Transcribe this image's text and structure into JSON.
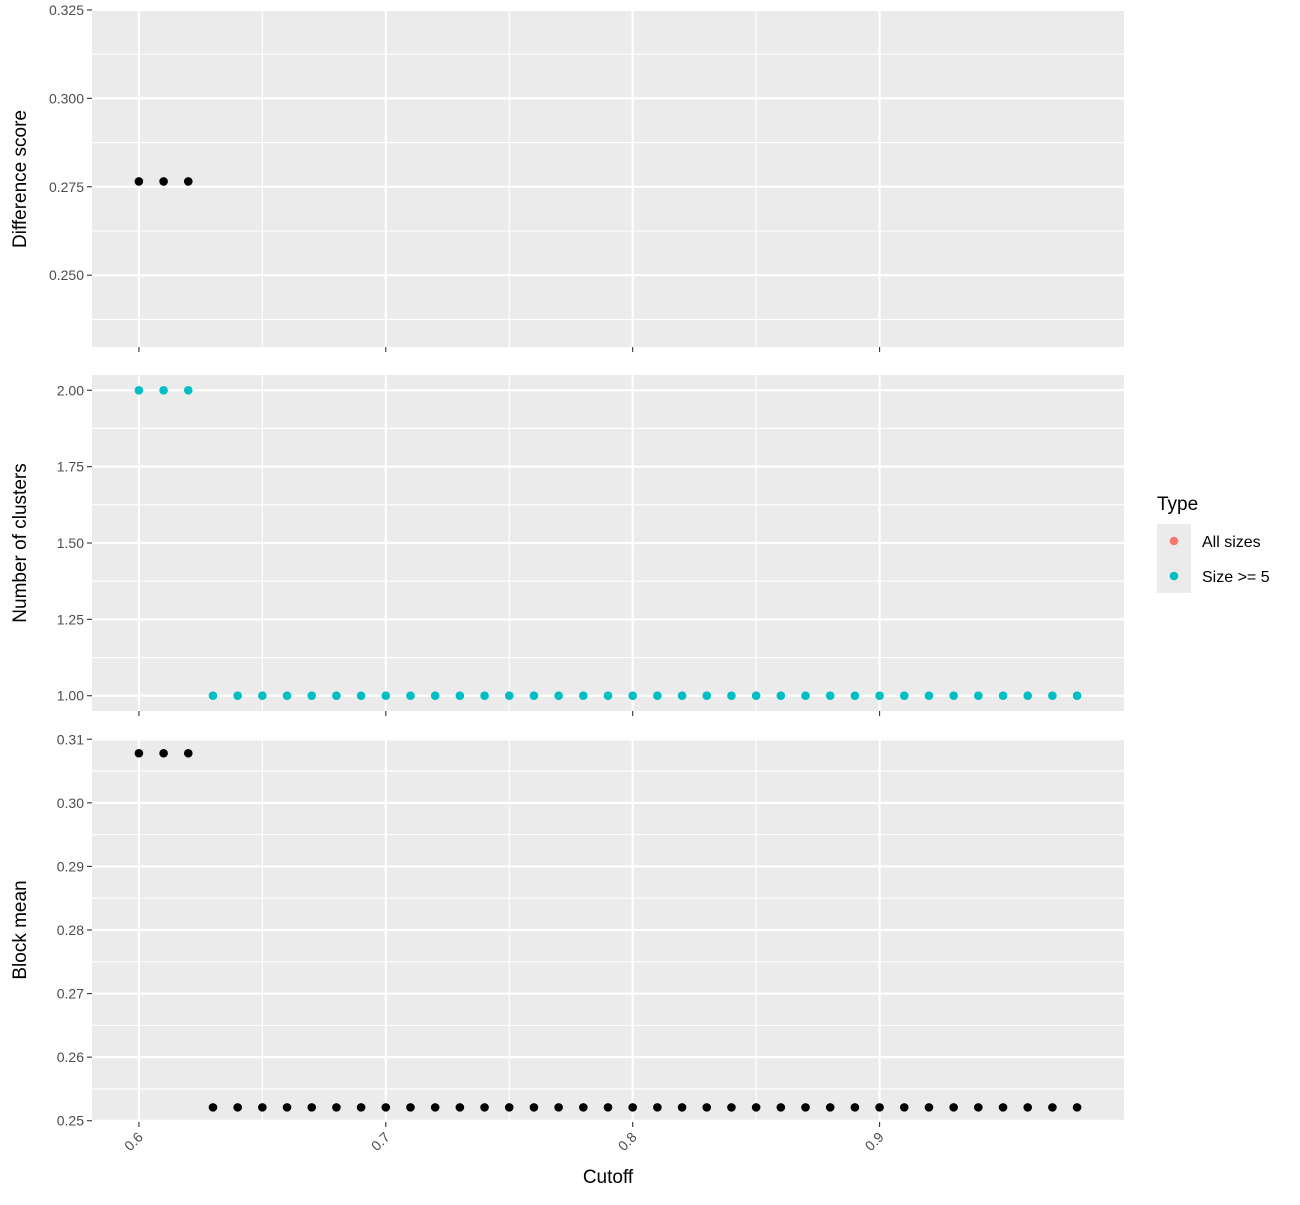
{
  "chart_data": {
    "type": "scatter",
    "xlabel": "Cutoff",
    "x_ticks": [
      "0.6",
      "0.7",
      "0.8",
      "0.9"
    ],
    "xlim": [
      0.581,
      0.999
    ],
    "legend": {
      "title": "Type",
      "position": "right",
      "entries": [
        {
          "label": "All sizes",
          "color": "#F8766D"
        },
        {
          "label": "Size >= 5",
          "color": "#00BFC4"
        }
      ]
    },
    "grid": true,
    "panels": [
      {
        "ylabel": "Difference score",
        "ylim": [
          0.2297,
          0.3247
        ],
        "y_ticks": [
          "0.250",
          "0.275",
          "0.300",
          "0.325"
        ],
        "y_tick_values": [
          0.25,
          0.275,
          0.3,
          0.325
        ],
        "series": [
          {
            "color": "#000000",
            "x": [
              0.6,
              0.61,
              0.62
            ],
            "y": [
              0.2765,
              0.2765,
              0.2765
            ]
          }
        ]
      },
      {
        "ylabel": "Number of clusters",
        "ylim": [
          0.95,
          2.05
        ],
        "y_ticks": [
          "1.00",
          "1.25",
          "1.50",
          "1.75",
          "2.00"
        ],
        "y_tick_values": [
          1.0,
          1.25,
          1.5,
          1.75,
          2.0
        ],
        "series": [
          {
            "name": "Size >= 5",
            "color": "#00BFC4",
            "x": [
              0.6,
              0.61,
              0.62,
              0.63,
              0.64,
              0.65,
              0.66,
              0.67,
              0.68,
              0.69,
              0.7,
              0.71,
              0.72,
              0.73,
              0.74,
              0.75,
              0.76,
              0.77,
              0.78,
              0.79,
              0.8,
              0.81,
              0.82,
              0.83,
              0.84,
              0.85,
              0.86,
              0.87,
              0.88,
              0.89,
              0.9,
              0.91,
              0.92,
              0.93,
              0.94,
              0.95,
              0.96,
              0.97,
              0.98
            ],
            "y": [
              2,
              2,
              2,
              1,
              1,
              1,
              1,
              1,
              1,
              1,
              1,
              1,
              1,
              1,
              1,
              1,
              1,
              1,
              1,
              1,
              1,
              1,
              1,
              1,
              1,
              1,
              1,
              1,
              1,
              1,
              1,
              1,
              1,
              1,
              1,
              1,
              1,
              1,
              1
            ]
          }
        ]
      },
      {
        "ylabel": "Block mean",
        "ylim": [
          0.2498,
          0.3102
        ],
        "y_ticks": [
          "0.25",
          "0.26",
          "0.27",
          "0.28",
          "0.29",
          "0.30",
          "0.31"
        ],
        "y_tick_values": [
          0.25,
          0.26,
          0.27,
          0.28,
          0.29,
          0.3,
          0.31
        ],
        "series": [
          {
            "color": "#000000",
            "x": [
              0.6,
              0.61,
              0.62,
              0.63,
              0.64,
              0.65,
              0.66,
              0.67,
              0.68,
              0.69,
              0.7,
              0.71,
              0.72,
              0.73,
              0.74,
              0.75,
              0.76,
              0.77,
              0.78,
              0.79,
              0.8,
              0.81,
              0.82,
              0.83,
              0.84,
              0.85,
              0.86,
              0.87,
              0.88,
              0.89,
              0.9,
              0.91,
              0.92,
              0.93,
              0.94,
              0.95,
              0.96,
              0.97,
              0.98
            ],
            "y": [
              0.3078,
              0.3078,
              0.3078,
              0.2521,
              0.2521,
              0.2521,
              0.2521,
              0.2521,
              0.2521,
              0.2521,
              0.2521,
              0.2521,
              0.2521,
              0.2521,
              0.2521,
              0.2521,
              0.2521,
              0.2521,
              0.2521,
              0.2521,
              0.2521,
              0.2521,
              0.2521,
              0.2521,
              0.2521,
              0.2521,
              0.2521,
              0.2521,
              0.2521,
              0.2521,
              0.2521,
              0.2521,
              0.2521,
              0.2521,
              0.2521,
              0.2521,
              0.2521,
              0.2521,
              0.2521
            ]
          }
        ]
      }
    ]
  }
}
